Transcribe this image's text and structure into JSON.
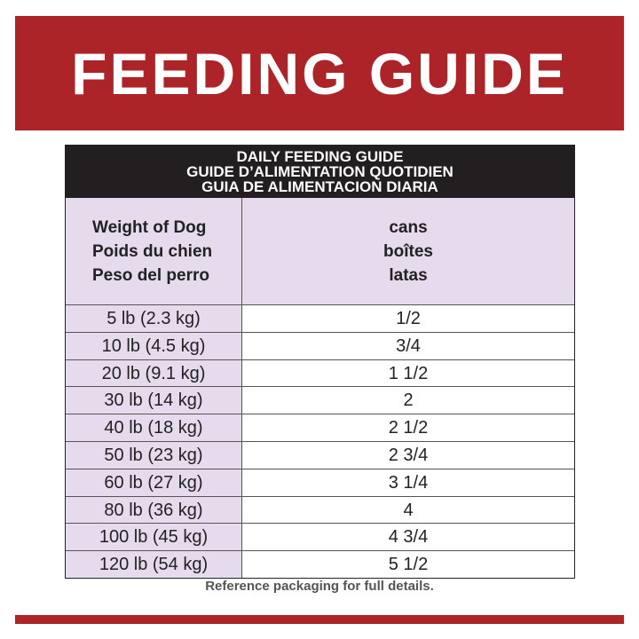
{
  "header": {
    "title": "FEEDING GUIDE"
  },
  "table": {
    "caption": [
      "DAILY FEEDING GUIDE",
      "GUIDE D’ALIMENTATION QUOTIDIEN",
      "GUIA DE ALIMENTACION DIARIA"
    ],
    "columns": [
      [
        "Weight of Dog",
        "Poids du chien",
        "Peso del perro"
      ],
      [
        "cans",
        "boîtes",
        "latas"
      ]
    ],
    "rows": [
      [
        "5 lb (2.3 kg)",
        "1/2"
      ],
      [
        "10 lb (4.5 kg)",
        "3/4"
      ],
      [
        "20 lb (9.1 kg)",
        "1 1/2"
      ],
      [
        "30 lb (14 kg)",
        "2"
      ],
      [
        "40 lb (18 kg)",
        "2 1/2"
      ],
      [
        "50 lb (23 kg)",
        "2 3/4"
      ],
      [
        "60 lb (27 kg)",
        "3 1/4"
      ],
      [
        "80 lb (36 kg)",
        "4"
      ],
      [
        "100 lb (45 kg)",
        "4 3/4"
      ],
      [
        "120 lb (54 kg)",
        "5 1/2"
      ]
    ]
  },
  "footer": {
    "note": "Reference packaging for full details."
  }
}
